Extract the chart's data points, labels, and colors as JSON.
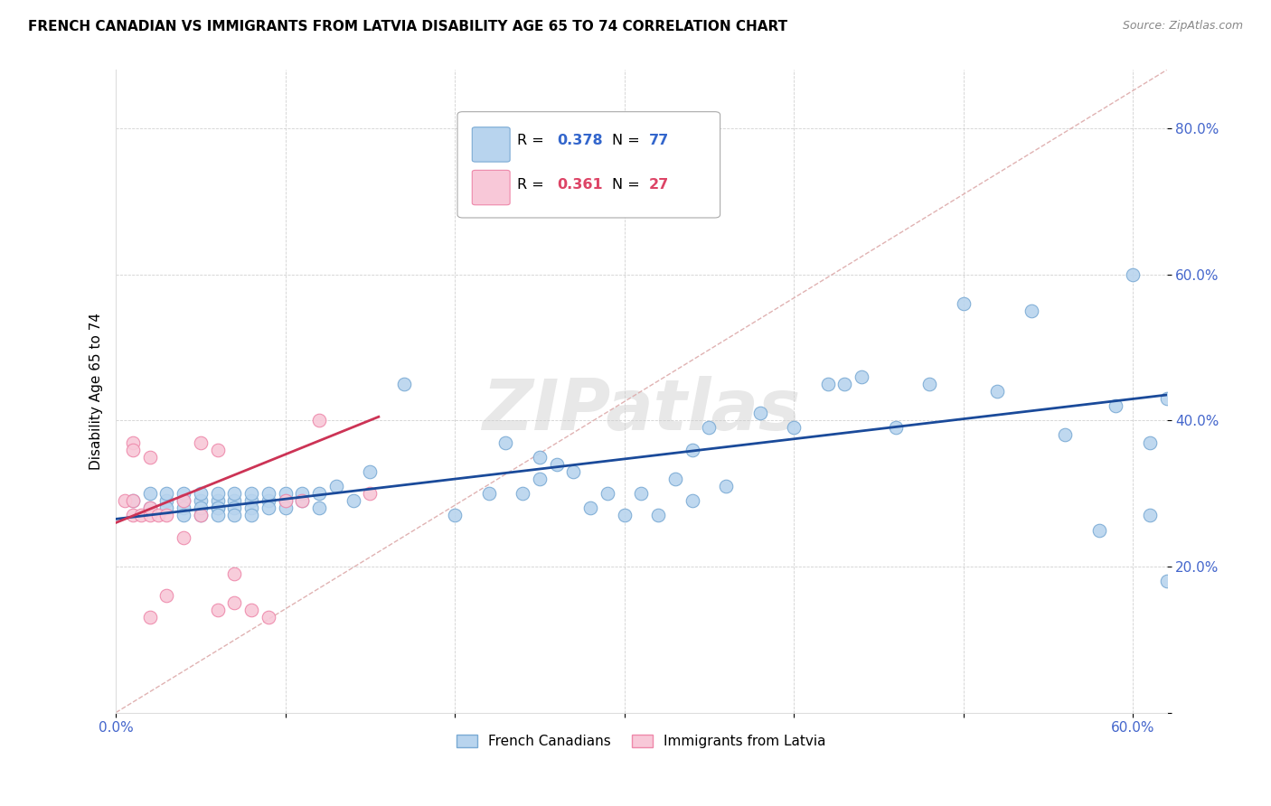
{
  "title": "FRENCH CANADIAN VS IMMIGRANTS FROM LATVIA DISABILITY AGE 65 TO 74 CORRELATION CHART",
  "source": "Source: ZipAtlas.com",
  "ylabel": "Disability Age 65 to 74",
  "xlim": [
    0.0,
    0.62
  ],
  "ylim": [
    0.0,
    0.88
  ],
  "blue_color": "#b8d4ee",
  "blue_edge_color": "#7aaad4",
  "pink_color": "#f8c8d8",
  "pink_edge_color": "#ee88aa",
  "blue_line_color": "#1a4a9a",
  "pink_line_color": "#cc3355",
  "ref_line_color": "#ddaaaa",
  "watermark": "ZIPatlas",
  "blue_scatter_x": [
    0.01,
    0.02,
    0.02,
    0.03,
    0.03,
    0.03,
    0.04,
    0.04,
    0.04,
    0.04,
    0.05,
    0.05,
    0.05,
    0.05,
    0.06,
    0.06,
    0.06,
    0.06,
    0.06,
    0.07,
    0.07,
    0.07,
    0.07,
    0.08,
    0.08,
    0.08,
    0.08,
    0.09,
    0.09,
    0.09,
    0.1,
    0.1,
    0.1,
    0.11,
    0.11,
    0.12,
    0.12,
    0.13,
    0.14,
    0.15,
    0.17,
    0.2,
    0.22,
    0.23,
    0.24,
    0.25,
    0.25,
    0.26,
    0.27,
    0.28,
    0.29,
    0.3,
    0.31,
    0.32,
    0.33,
    0.34,
    0.34,
    0.35,
    0.36,
    0.38,
    0.4,
    0.42,
    0.43,
    0.44,
    0.46,
    0.48,
    0.5,
    0.52,
    0.54,
    0.56,
    0.58,
    0.59,
    0.6,
    0.61,
    0.61,
    0.62,
    0.62
  ],
  "blue_scatter_y": [
    0.29,
    0.3,
    0.28,
    0.29,
    0.3,
    0.28,
    0.29,
    0.3,
    0.28,
    0.27,
    0.29,
    0.3,
    0.27,
    0.28,
    0.28,
    0.29,
    0.3,
    0.28,
    0.27,
    0.29,
    0.28,
    0.3,
    0.27,
    0.29,
    0.3,
    0.28,
    0.27,
    0.29,
    0.3,
    0.28,
    0.29,
    0.28,
    0.3,
    0.29,
    0.3,
    0.28,
    0.3,
    0.31,
    0.29,
    0.33,
    0.45,
    0.27,
    0.3,
    0.37,
    0.3,
    0.32,
    0.35,
    0.34,
    0.33,
    0.28,
    0.3,
    0.27,
    0.3,
    0.27,
    0.32,
    0.29,
    0.36,
    0.39,
    0.31,
    0.41,
    0.39,
    0.45,
    0.45,
    0.46,
    0.39,
    0.45,
    0.56,
    0.44,
    0.55,
    0.38,
    0.25,
    0.42,
    0.6,
    0.37,
    0.27,
    0.43,
    0.18
  ],
  "pink_scatter_x": [
    0.005,
    0.01,
    0.01,
    0.01,
    0.01,
    0.015,
    0.02,
    0.02,
    0.02,
    0.02,
    0.025,
    0.03,
    0.03,
    0.04,
    0.04,
    0.05,
    0.05,
    0.06,
    0.06,
    0.07,
    0.07,
    0.08,
    0.09,
    0.1,
    0.11,
    0.12,
    0.15
  ],
  "pink_scatter_y": [
    0.29,
    0.29,
    0.37,
    0.36,
    0.27,
    0.27,
    0.35,
    0.27,
    0.13,
    0.28,
    0.27,
    0.27,
    0.16,
    0.29,
    0.24,
    0.27,
    0.37,
    0.36,
    0.14,
    0.15,
    0.19,
    0.14,
    0.13,
    0.29,
    0.29,
    0.4,
    0.3
  ],
  "blue_trend_x": [
    0.0,
    0.62
  ],
  "blue_trend_y": [
    0.265,
    0.435
  ],
  "pink_trend_x": [
    0.0,
    0.155
  ],
  "pink_trend_y": [
    0.26,
    0.405
  ],
  "ref_line_x": [
    0.0,
    0.62
  ],
  "ref_line_y": [
    0.0,
    0.88
  ]
}
